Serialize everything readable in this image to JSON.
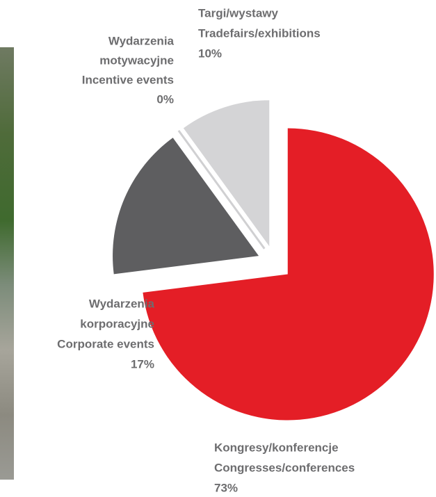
{
  "chart_data": {
    "type": "pie",
    "categories": [
      [
        "Kongresy/konferencje",
        "Congresses/conferences"
      ],
      [
        "Wydarzenia",
        "korporacyjne",
        "Corporate events"
      ],
      [
        "Wydarzenia",
        "motywacyjne",
        "Incentive events"
      ],
      [
        "Targi/wystawy",
        "Tradefairs/exhibitions"
      ]
    ],
    "values": [
      73,
      17,
      0,
      10
    ],
    "value_labels": [
      "73%",
      "17%",
      "0%",
      "10%"
    ],
    "colors": [
      "#e41e26",
      "#5e5e60",
      "#d0d0d2",
      "#d4d4d6"
    ]
  }
}
